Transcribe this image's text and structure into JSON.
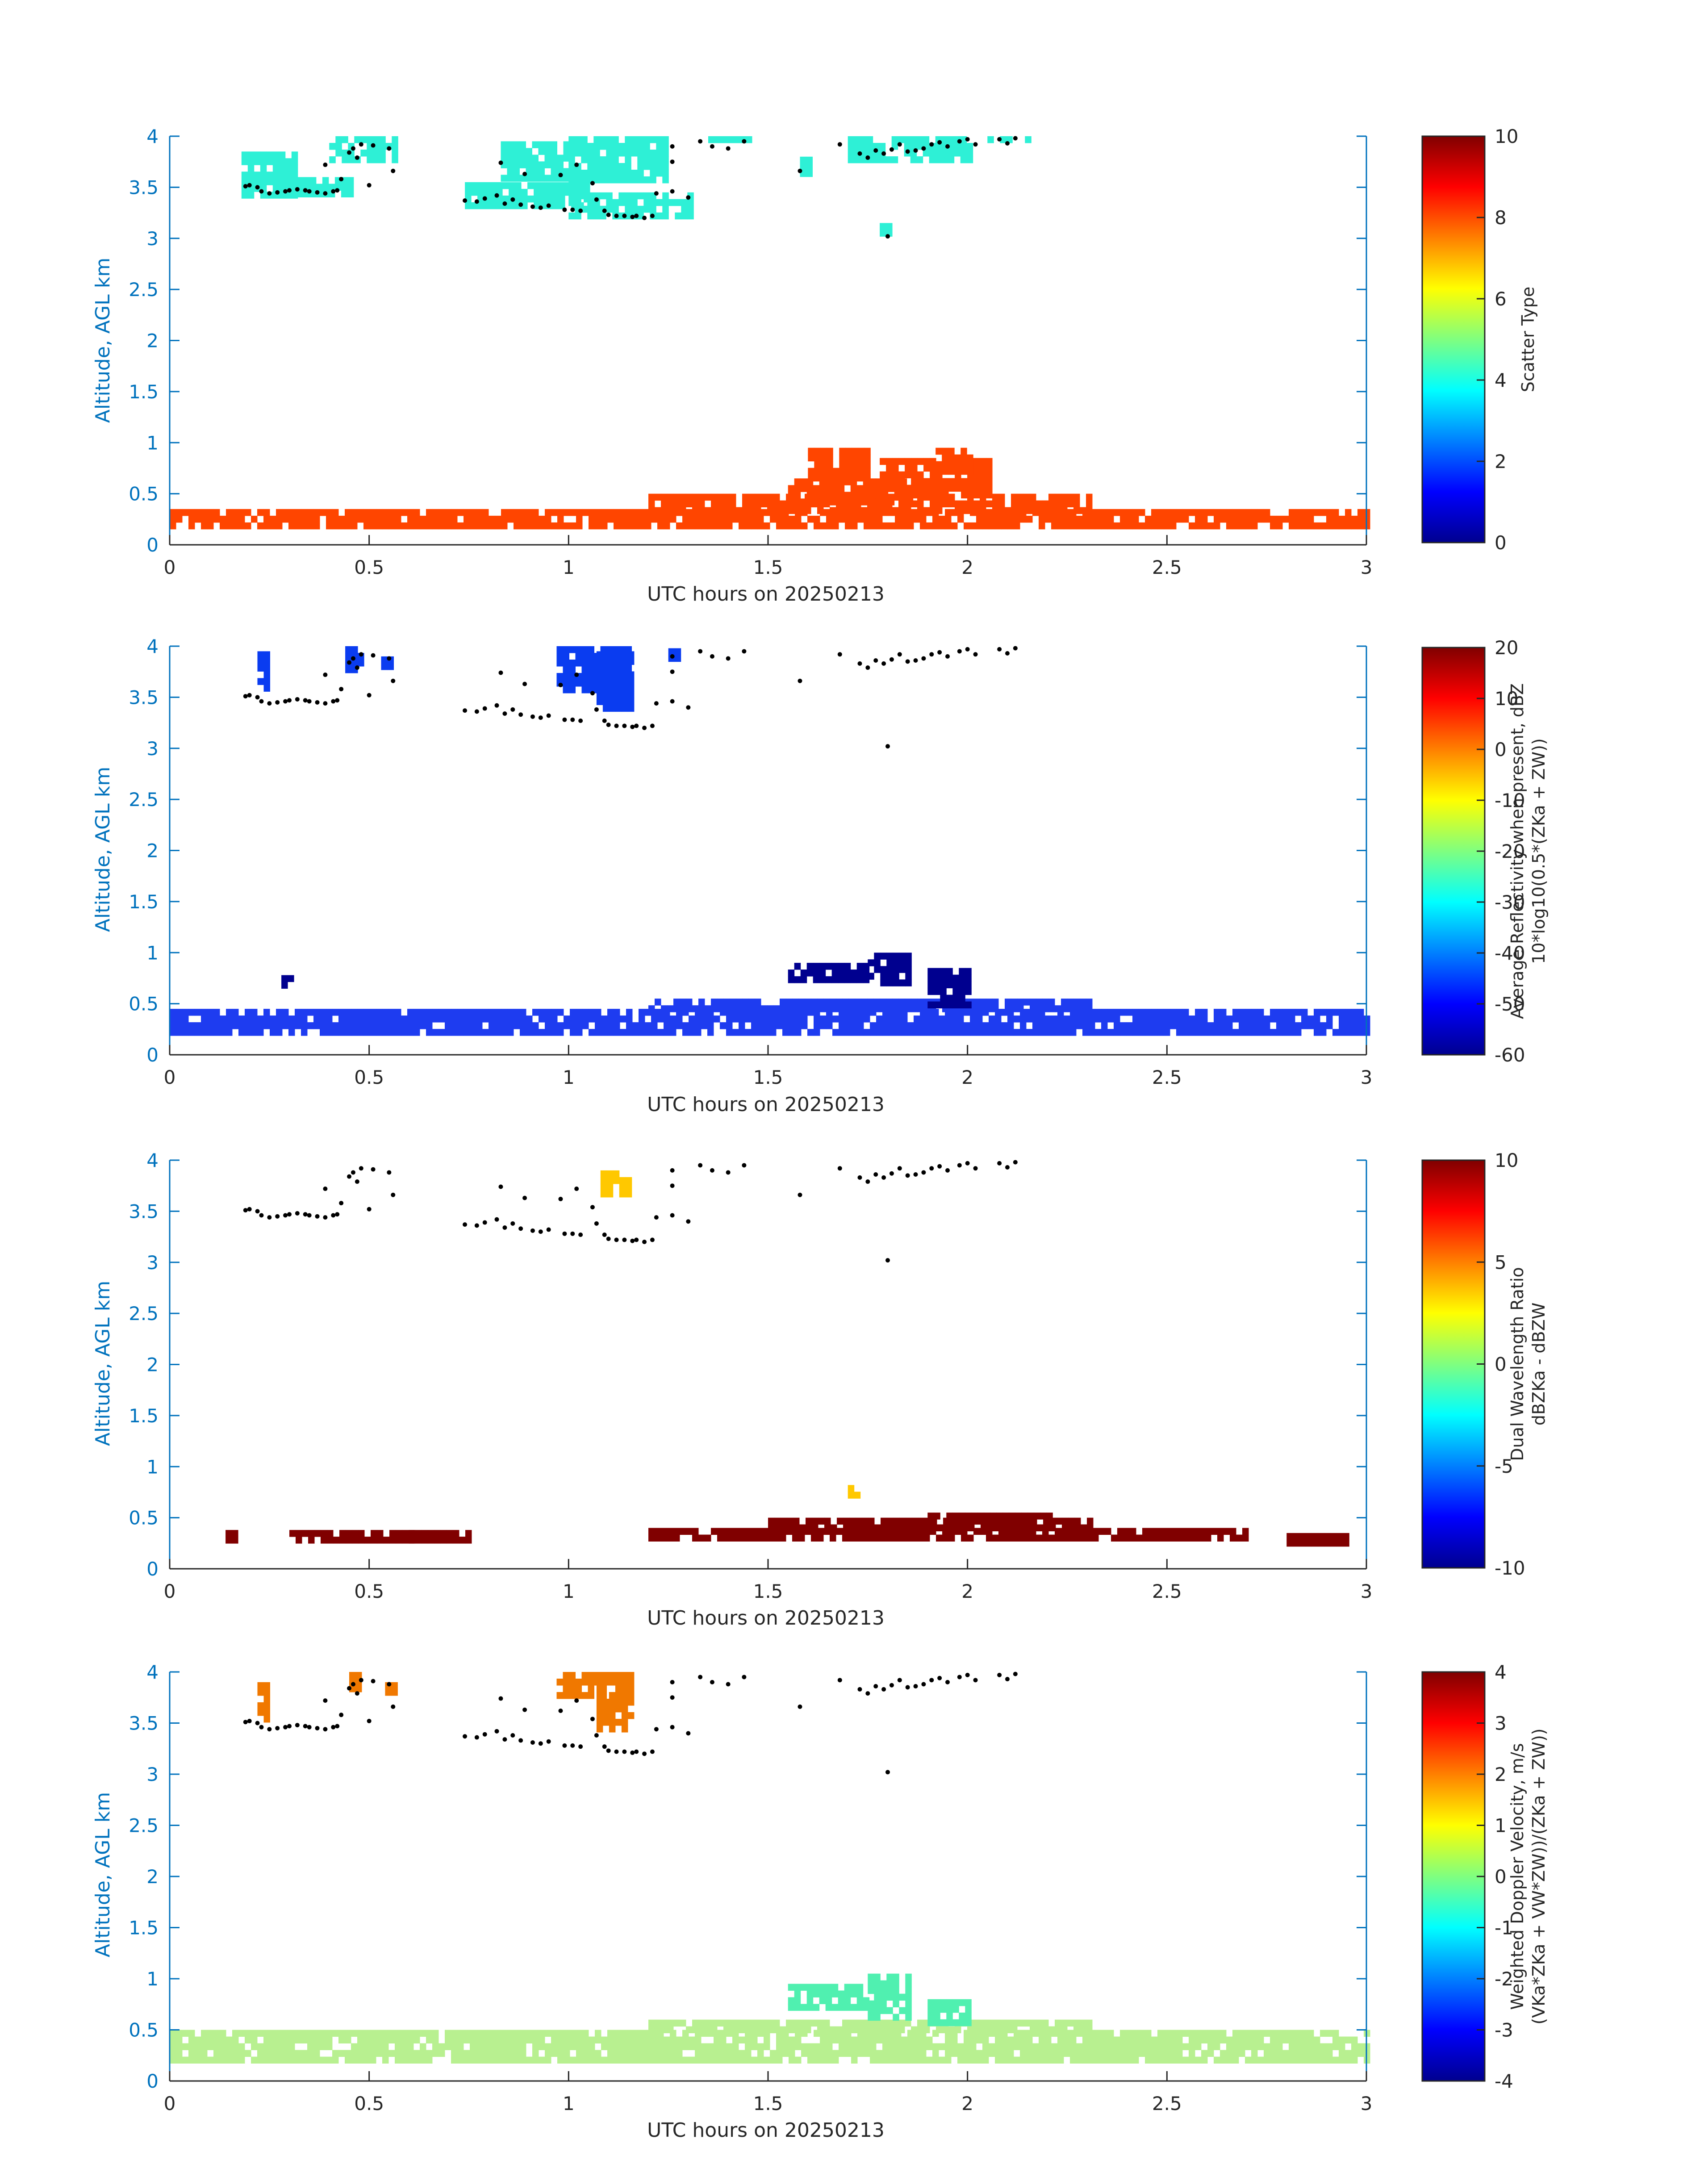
{
  "chart_data": [
    {
      "type": "heatmap",
      "xlabel": "UTC hours on 20250213",
      "ylabel": "Altitude, AGL km",
      "xlim": [
        0,
        3
      ],
      "ylim": [
        0,
        4
      ],
      "xticks": [
        "0",
        "0.5",
        "1",
        "1.5",
        "2",
        "2.5",
        "3"
      ],
      "yticks": [
        "0",
        "0.5",
        "1",
        "1.5",
        "2",
        "2.5",
        "3",
        "3.5",
        "4"
      ],
      "colorbar": {
        "label_lines": [
          "Scatter Type"
        ],
        "range": [
          0,
          10
        ],
        "ticks": [
          "0",
          "2",
          "4",
          "6",
          "8",
          "10"
        ],
        "colormap": "jet"
      },
      "layers": [
        {
          "name": "cloud-aloft",
          "value": 3.6,
          "color": "#2ef0d6",
          "regions": [
            [
              0.18,
              0.32,
              3.45,
              3.85
            ],
            [
              0.32,
              0.45,
              3.45,
              3.6
            ],
            [
              0.4,
              0.56,
              3.75,
              4.0
            ],
            [
              0.74,
              1.05,
              3.35,
              3.55
            ],
            [
              0.83,
              1.0,
              3.6,
              3.95
            ],
            [
              1.0,
              1.3,
              3.2,
              3.45
            ],
            [
              1.0,
              1.25,
              3.6,
              4.0
            ],
            [
              1.35,
              1.45,
              3.95,
              4.0
            ],
            [
              1.58,
              1.6,
              3.65,
              3.8
            ],
            [
              1.78,
              1.8,
              3.05,
              3.15
            ],
            [
              1.7,
              2.0,
              3.8,
              4.0
            ],
            [
              2.05,
              2.15,
              3.95,
              4.0
            ]
          ]
        },
        {
          "name": "boundary-layer",
          "value": 8.5,
          "color": "#ff4500",
          "regions": [
            [
              0,
              3,
              0.2,
              0.35
            ],
            [
              1.2,
              2.3,
              0.35,
              0.5
            ],
            [
              1.55,
              1.85,
              0.45,
              0.65
            ],
            [
              1.6,
              1.75,
              0.65,
              0.95
            ],
            [
              1.78,
              2.05,
              0.5,
              0.85
            ],
            [
              1.92,
              2.0,
              0.75,
              0.95
            ]
          ]
        }
      ],
      "cloud_top_markers": true
    },
    {
      "type": "heatmap",
      "xlabel": "UTC hours on 20250213",
      "ylabel": "Altitude, AGL km",
      "xlim": [
        0,
        3
      ],
      "ylim": [
        0,
        4
      ],
      "xticks": [
        "0",
        "0.5",
        "1",
        "1.5",
        "2",
        "2.5",
        "3"
      ],
      "yticks": [
        "0",
        "0.5",
        "1",
        "1.5",
        "2",
        "2.5",
        "3",
        "3.5",
        "4"
      ],
      "colorbar": {
        "label_lines": [
          "Average Reflectivity when present, dBZ",
          "10*log10(0.5*(ZKa + ZW))"
        ],
        "range": [
          -60,
          20
        ],
        "ticks": [
          "-60",
          "-50",
          "-40",
          "-30",
          "-20",
          "-10",
          "0",
          "10",
          "20"
        ],
        "colormap": "jet"
      },
      "layers": [
        {
          "name": "ice-cloud",
          "value": -50,
          "color": "#0a3cf0",
          "regions": [
            [
              0.22,
              0.24,
              3.6,
              3.95
            ],
            [
              0.44,
              0.48,
              3.8,
              4.0
            ],
            [
              0.53,
              0.56,
              3.8,
              3.9
            ],
            [
              0.97,
              1.15,
              3.55,
              4.0
            ],
            [
              1.07,
              1.16,
              3.4,
              3.95
            ],
            [
              1.25,
              1.28,
              3.9,
              3.98
            ]
          ]
        },
        {
          "name": "boundary-layer",
          "value": -48,
          "color": "#1e3cf0",
          "regions": [
            [
              0,
              3,
              0.2,
              0.45
            ],
            [
              1.2,
              2.3,
              0.45,
              0.55
            ]
          ]
        },
        {
          "name": "drizzle-top",
          "value": -57,
          "color": "#00008f",
          "regions": [
            [
              1.55,
              1.75,
              0.75,
              0.9
            ],
            [
              1.75,
              1.85,
              0.7,
              1.0
            ],
            [
              1.9,
              2.0,
              0.5,
              0.85
            ],
            [
              0.28,
              0.3,
              0.68,
              0.78
            ]
          ]
        }
      ],
      "cloud_top_markers": true
    },
    {
      "type": "heatmap",
      "xlabel": "UTC hours on 20250213",
      "ylabel": "Altitude, AGL km",
      "xlim": [
        0,
        3
      ],
      "ylim": [
        0,
        4
      ],
      "xticks": [
        "0",
        "0.5",
        "1",
        "1.5",
        "2",
        "2.5",
        "3"
      ],
      "yticks": [
        "0",
        "0.5",
        "1",
        "1.5",
        "2",
        "2.5",
        "3",
        "3.5",
        "4"
      ],
      "colorbar": {
        "label_lines": [
          "Dual Wavelength Ratio",
          "dBZKa - dBZW"
        ],
        "range": [
          -10,
          10
        ],
        "ticks": [
          "-10",
          "-5",
          "0",
          "5",
          "10"
        ],
        "colormap": "jet"
      },
      "layers": [
        {
          "name": "dwr-high",
          "value": 9.5,
          "color": "#800000",
          "regions": [
            [
              0.14,
              0.17,
              0.28,
              0.38
            ],
            [
              0.3,
              0.6,
              0.28,
              0.38
            ],
            [
              0.6,
              0.75,
              0.28,
              0.38
            ],
            [
              1.2,
              2.7,
              0.28,
              0.4
            ],
            [
              1.5,
              2.3,
              0.4,
              0.5
            ],
            [
              1.9,
              2.2,
              0.5,
              0.55
            ],
            [
              2.8,
              2.95,
              0.28,
              0.35
            ]
          ]
        },
        {
          "name": "dwr-aloft",
          "value": 4,
          "color": "#ffc800",
          "regions": [
            [
              1.08,
              1.15,
              3.7,
              3.9
            ],
            [
              1.7,
              1.73,
              0.7,
              0.82
            ]
          ]
        }
      ],
      "cloud_top_markers": true
    },
    {
      "type": "heatmap",
      "xlabel": "UTC hours on 20250213",
      "ylabel": "Altitude, AGL km",
      "xlim": [
        0,
        3
      ],
      "ylim": [
        0,
        4
      ],
      "xticks": [
        "0",
        "0.5",
        "1",
        "1.5",
        "2",
        "2.5",
        "3"
      ],
      "yticks": [
        "0",
        "0.5",
        "1",
        "1.5",
        "2",
        "2.5",
        "3",
        "3.5",
        "4"
      ],
      "colorbar": {
        "label_lines": [
          "Weighted Doppler Velocity, m/s",
          "(VKa*ZKa + VW*ZW))/(ZKa + ZW))"
        ],
        "range": [
          -4,
          4
        ],
        "ticks": [
          "-4",
          "-3",
          "-2",
          "-1",
          "0",
          "1",
          "2",
          "3",
          "4"
        ],
        "colormap": "jet"
      },
      "layers": [
        {
          "name": "ice-fall",
          "value": 2.5,
          "color": "#f07800",
          "regions": [
            [
              0.22,
              0.24,
              3.55,
              3.9
            ],
            [
              0.45,
              0.48,
              3.85,
              4.0
            ],
            [
              0.54,
              0.56,
              3.8,
              3.9
            ],
            [
              0.97,
              1.08,
              3.75,
              4.0
            ],
            [
              1.07,
              1.16,
              3.45,
              4.0
            ]
          ]
        },
        {
          "name": "boundary-layer",
          "value": 0.3,
          "color": "#b8f090",
          "regions": [
            [
              0,
              3,
              0.2,
              0.5
            ],
            [
              1.2,
              2.3,
              0.5,
              0.6
            ]
          ]
        },
        {
          "name": "drizzle-top",
          "value": -0.9,
          "color": "#50f0b0",
          "regions": [
            [
              1.55,
              1.75,
              0.7,
              0.95
            ],
            [
              1.75,
              1.85,
              0.65,
              1.05
            ],
            [
              1.9,
              2.0,
              0.55,
              0.8
            ]
          ]
        }
      ],
      "cloud_top_markers": true
    }
  ],
  "cloud_top_points": [
    [
      0.19,
      3.51
    ],
    [
      0.2,
      3.52
    ],
    [
      0.22,
      3.5
    ],
    [
      0.23,
      3.46
    ],
    [
      0.25,
      3.44
    ],
    [
      0.27,
      3.45
    ],
    [
      0.29,
      3.46
    ],
    [
      0.3,
      3.47
    ],
    [
      0.32,
      3.48
    ],
    [
      0.34,
      3.47
    ],
    [
      0.35,
      3.46
    ],
    [
      0.37,
      3.45
    ],
    [
      0.39,
      3.44
    ],
    [
      0.41,
      3.46
    ],
    [
      0.42,
      3.47
    ],
    [
      0.39,
      3.72
    ],
    [
      0.43,
      3.58
    ],
    [
      0.45,
      3.84
    ],
    [
      0.46,
      3.88
    ],
    [
      0.47,
      3.79
    ],
    [
      0.48,
      3.92
    ],
    [
      0.5,
      3.52
    ],
    [
      0.51,
      3.91
    ],
    [
      0.55,
      3.88
    ],
    [
      0.56,
      3.66
    ],
    [
      0.74,
      3.37
    ],
    [
      0.77,
      3.36
    ],
    [
      0.79,
      3.39
    ],
    [
      0.82,
      3.42
    ],
    [
      0.83,
      3.74
    ],
    [
      0.84,
      3.34
    ],
    [
      0.86,
      3.38
    ],
    [
      0.88,
      3.33
    ],
    [
      0.89,
      3.63
    ],
    [
      0.91,
      3.31
    ],
    [
      0.93,
      3.3
    ],
    [
      0.95,
      3.32
    ],
    [
      0.98,
      3.62
    ],
    [
      0.99,
      3.28
    ],
    [
      1.01,
      3.28
    ],
    [
      1.03,
      3.27
    ],
    [
      1.02,
      3.72
    ],
    [
      1.06,
      3.54
    ],
    [
      1.07,
      3.38
    ],
    [
      1.09,
      3.27
    ],
    [
      1.1,
      3.23
    ],
    [
      1.12,
      3.22
    ],
    [
      1.14,
      3.22
    ],
    [
      1.16,
      3.21
    ],
    [
      1.17,
      3.22
    ],
    [
      1.19,
      3.2
    ],
    [
      1.21,
      3.22
    ],
    [
      1.22,
      3.44
    ],
    [
      1.26,
      3.46
    ],
    [
      1.26,
      3.75
    ],
    [
      1.26,
      3.9
    ],
    [
      1.3,
      3.4
    ],
    [
      1.33,
      3.95
    ],
    [
      1.36,
      3.9
    ],
    [
      1.4,
      3.88
    ],
    [
      1.44,
      3.95
    ],
    [
      1.58,
      3.66
    ],
    [
      1.68,
      3.92
    ],
    [
      1.73,
      3.83
    ],
    [
      1.75,
      3.79
    ],
    [
      1.77,
      3.86
    ],
    [
      1.79,
      3.83
    ],
    [
      1.8,
      3.02
    ],
    [
      1.81,
      3.87
    ],
    [
      1.83,
      3.92
    ],
    [
      1.85,
      3.85
    ],
    [
      1.87,
      3.86
    ],
    [
      1.89,
      3.88
    ],
    [
      1.91,
      3.92
    ],
    [
      1.93,
      3.94
    ],
    [
      1.95,
      3.9
    ],
    [
      1.98,
      3.95
    ],
    [
      2.0,
      3.97
    ],
    [
      2.02,
      3.92
    ],
    [
      2.08,
      3.97
    ],
    [
      2.1,
      3.93
    ],
    [
      2.12,
      3.98
    ]
  ]
}
